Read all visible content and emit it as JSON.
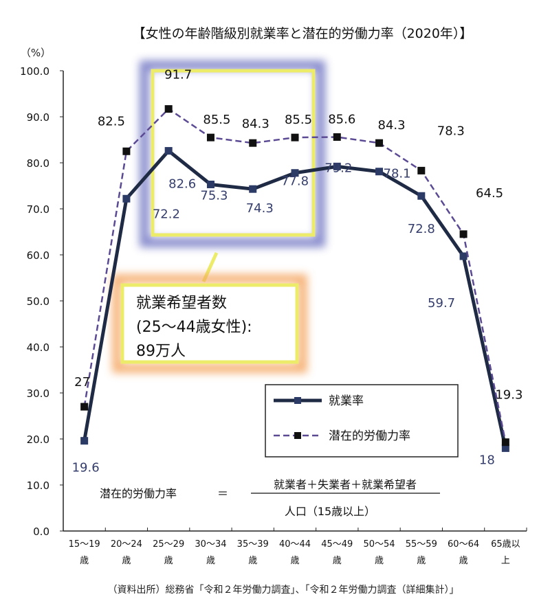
{
  "chart_data": {
    "type": "line",
    "title": "【女性の年齢階級別就業率と潜在的労働力率（2020年）】",
    "ylabel": "（%）",
    "ylim": [
      0,
      100
    ],
    "yticks": [
      "0.0",
      "10.0",
      "20.0",
      "30.0",
      "40.0",
      "50.0",
      "60.0",
      "70.0",
      "80.0",
      "90.0",
      "100.0"
    ],
    "categories": [
      [
        "15～19",
        "歳"
      ],
      [
        "20～24",
        "歳"
      ],
      [
        "25～29",
        "歳"
      ],
      [
        "30～34",
        "歳"
      ],
      [
        "35～39",
        "歳"
      ],
      [
        "40～44",
        "歳"
      ],
      [
        "45～49",
        "歳"
      ],
      [
        "50～54",
        "歳"
      ],
      [
        "55～59",
        "歳"
      ],
      [
        "60～64",
        "歳"
      ],
      [
        "65歳以",
        "上"
      ]
    ],
    "series": [
      {
        "name": "就業率",
        "style": "solid",
        "color": "#1f2a44",
        "label_color": "#343d6b",
        "values": [
          19.6,
          72.2,
          82.6,
          75.3,
          74.3,
          77.8,
          79.2,
          78.1,
          72.8,
          59.7,
          18.0
        ]
      },
      {
        "name": "潜在的労働力率",
        "style": "dashed",
        "color": "#5b4a93",
        "label_color": "#111111",
        "values": [
          27.0,
          82.5,
          91.7,
          85.5,
          84.3,
          85.5,
          85.6,
          84.3,
          78.3,
          64.5,
          19.3
        ]
      }
    ],
    "legend": "bottom-right",
    "grid": false,
    "annotation": {
      "lines": [
        "就業希望者数",
        "(25～44歳女性):",
        "89万人"
      ],
      "highlight_range": [
        "25～29",
        "40～44"
      ]
    },
    "formula": {
      "lhs": "潜在的労働力率",
      "eq": "＝",
      "numerator": "就業者＋失業者＋就業希望者",
      "denominator": "人口（15歳以上）"
    },
    "source": "（資料出所）総務省「令和２年労働力調査」、「令和２年労働力調査（詳細集計）」"
  }
}
